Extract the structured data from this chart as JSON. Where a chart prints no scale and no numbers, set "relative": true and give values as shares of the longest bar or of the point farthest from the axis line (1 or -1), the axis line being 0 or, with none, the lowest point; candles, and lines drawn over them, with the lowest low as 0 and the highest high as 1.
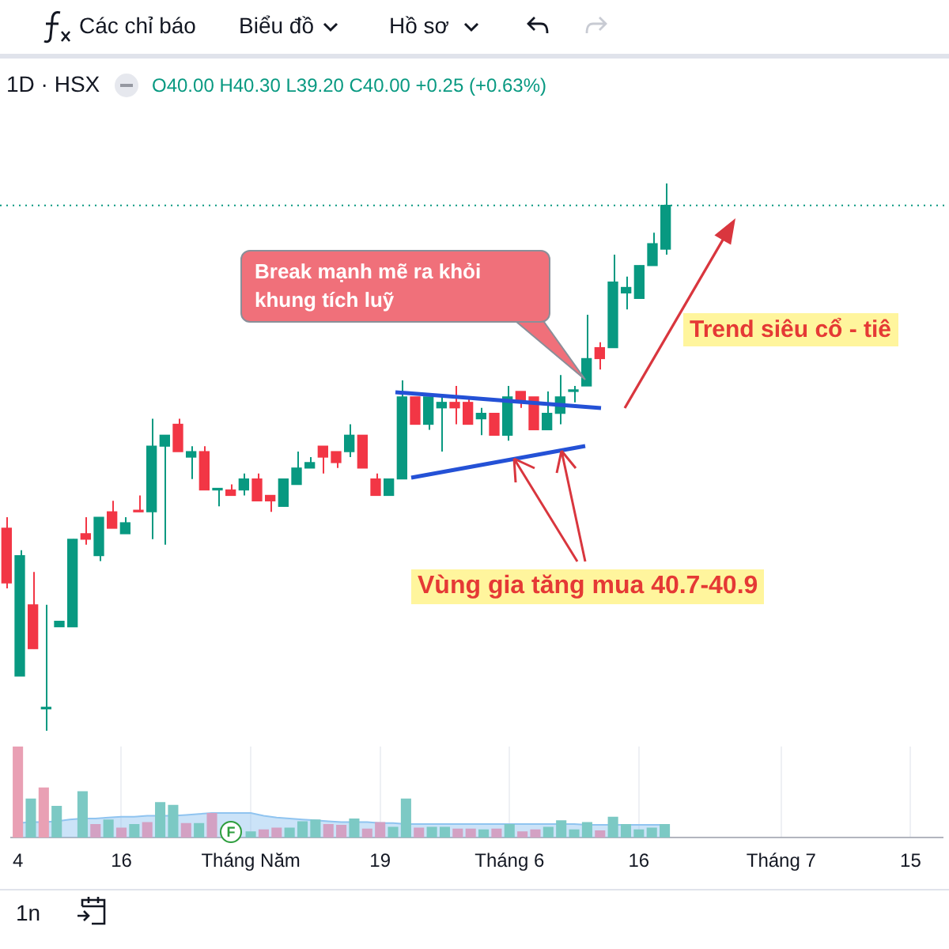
{
  "chart_data": [
    {
      "type": "candlestick",
      "title": "1D · HSX",
      "relative": true,
      "tick_labels": false,
      "categories": [
        null,
        null,
        null,
        null,
        null,
        null,
        null,
        null,
        null,
        null,
        null,
        null,
        null,
        null,
        null,
        null,
        null,
        null,
        null,
        null,
        null,
        null,
        null,
        null,
        null,
        null,
        null,
        null,
        null,
        null,
        null,
        null,
        null,
        null,
        null,
        null,
        null,
        null,
        null,
        null,
        null,
        null,
        null,
        null,
        null,
        null,
        null,
        null,
        null,
        null,
        null
      ],
      "ohlc": [
        [
          0.37,
          0.39,
          0.26,
          0.27
        ],
        [
          0.1,
          0.33,
          0.1,
          0.32
        ],
        [
          0.23,
          0.29,
          0.15,
          0.15
        ],
        [
          0.04,
          0.23,
          0,
          0.04
        ],
        [
          0.19,
          0.2,
          0.19,
          0.2
        ],
        [
          0.19,
          0.35,
          0.19,
          0.35
        ],
        [
          0.36,
          0.39,
          0.34,
          0.35
        ],
        [
          0.32,
          0.39,
          0.31,
          0.39
        ],
        [
          0.4,
          0.42,
          0.37,
          0.37
        ],
        [
          0.36,
          0.39,
          0.36,
          0.38
        ],
        [
          0.4,
          0.43,
          0.4,
          0.4
        ],
        [
          0.4,
          0.57,
          0.35,
          0.52
        ],
        [
          0.52,
          0.54,
          0.34,
          0.54
        ],
        [
          0.56,
          0.57,
          0.51,
          0.51
        ],
        [
          0.5,
          0.52,
          0.46,
          0.51
        ],
        [
          0.51,
          0.52,
          0.44,
          0.44
        ],
        [
          0.44,
          0.44,
          0.41,
          0.44
        ],
        [
          0.44,
          0.45,
          0.43,
          0.43
        ],
        [
          0.44,
          0.47,
          0.43,
          0.46
        ],
        [
          0.46,
          0.47,
          0.42,
          0.42
        ],
        [
          0.43,
          0.43,
          0.4,
          0.42
        ],
        [
          0.41,
          0.46,
          0.41,
          0.46
        ],
        [
          0.45,
          0.51,
          0.45,
          0.48
        ],
        [
          0.48,
          0.5,
          0.48,
          0.49
        ],
        [
          0.52,
          0.52,
          0.47,
          0.5
        ],
        [
          0.51,
          0.51,
          0.48,
          0.49
        ],
        [
          0.51,
          0.56,
          0.5,
          0.54
        ],
        [
          0.54,
          0.54,
          0.48,
          0.48
        ],
        [
          0.46,
          0.47,
          0.43,
          0.43
        ],
        [
          0.43,
          0.46,
          0.43,
          0.46
        ],
        [
          0.46,
          0.64,
          0.46,
          0.61
        ],
        [
          0.61,
          0.61,
          0.56,
          0.56
        ],
        [
          0.56,
          0.61,
          0.55,
          0.61
        ],
        [
          0.59,
          0.61,
          0.51,
          0.6
        ],
        [
          0.6,
          0.63,
          0.56,
          0.59
        ],
        [
          0.6,
          0.61,
          0.56,
          0.56
        ],
        [
          0.57,
          0.59,
          0.54,
          0.58
        ],
        [
          0.58,
          0.58,
          0.54,
          0.54
        ],
        [
          0.54,
          0.63,
          0.53,
          0.61
        ],
        [
          0.62,
          0.62,
          0.59,
          0.6
        ],
        [
          0.61,
          0.61,
          0.55,
          0.55
        ],
        [
          0.55,
          0.62,
          0.55,
          0.58
        ],
        [
          0.58,
          0.65,
          0.56,
          0.61
        ],
        [
          0.62,
          0.63,
          0.6,
          0.62
        ],
        [
          0.63,
          0.76,
          0.63,
          0.68
        ],
        [
          0.7,
          0.71,
          0.66,
          0.68
        ],
        [
          0.7,
          0.87,
          0.7,
          0.82
        ],
        [
          0.8,
          0.83,
          0.77,
          0.81
        ],
        [
          0.79,
          0.85,
          0.79,
          0.85
        ],
        [
          0.85,
          0.91,
          0.85,
          0.89
        ],
        [
          0.88,
          1,
          0.87,
          0.96
        ]
      ],
      "colors": [
        "#f23645",
        "#089981",
        "#f23645",
        "#089981",
        "#089981",
        "#089981",
        "#f23645",
        "#089981",
        "#f23645",
        "#089981",
        "#f23645",
        "#089981",
        "#089981",
        "#f23645",
        "#089981",
        "#f23645",
        "#089981",
        "#f23645",
        "#089981",
        "#f23645",
        "#f23645",
        "#089981",
        "#089981",
        "#089981",
        "#f23645",
        "#f23645",
        "#089981",
        "#f23645",
        "#f23645",
        "#089981",
        "#089981",
        "#f23645",
        "#089981",
        "#089981",
        "#f23645",
        "#f23645",
        "#089981",
        "#f23645",
        "#089981",
        "#f23645",
        "#f23645",
        "#089981",
        "#089981",
        "#089981",
        "#089981",
        "#f23645",
        "#089981",
        "#089981",
        "#089981",
        "#089981",
        "#089981"
      ],
      "ref_lines": [
        {
          "axis": "y",
          "value": 0.96,
          "color": "#089981",
          "line_style": "dotted"
        }
      ],
      "annotations": [
        "O40.00 H40.30 L39.20 C40.00 +0.25 (+0.63%)",
        "Break mạnh mẽ ra khỏi khung tích luỹ",
        "Trend siêu cổ - tiê",
        "Vùng gia tăng mua 40.7-40.9",
        "Các chỉ báo",
        "Biểu đồ",
        "Hồ sơ",
        "1n",
        "F"
      ]
    },
    {
      "type": "bar",
      "relative": true,
      "grid": "x",
      "tick_labels": "x",
      "categories": [
        "4",
        null,
        null,
        null,
        null,
        null,
        null,
        null,
        "16",
        null,
        null,
        null,
        null,
        null,
        null,
        null,
        null,
        null,
        "Tháng Năm",
        null,
        null,
        null,
        null,
        null,
        null,
        null,
        null,
        null,
        "19",
        null,
        null,
        null,
        null,
        null,
        null,
        null,
        null,
        null,
        "Tháng 6",
        null,
        null,
        null,
        null,
        null,
        null,
        null,
        null,
        null,
        "16",
        null,
        null,
        null,
        null,
        null,
        null,
        null,
        null,
        null,
        null,
        "Tháng 7",
        null,
        null,
        null,
        null,
        null,
        null,
        null,
        null,
        null,
        "15",
        null,
        null
      ],
      "series": [
        {
          "type": "area",
          "color": "#90c4f0",
          "values": [
            0.16,
            0.17,
            0.17,
            0.18,
            0.2,
            0.21,
            0.21,
            0.22,
            0.23,
            0.23,
            0.24,
            0.24,
            0.24,
            0.25,
            0.26,
            0.27,
            0.27,
            0.27,
            0.27,
            0.24,
            0.22,
            0.21,
            0.2,
            0.19,
            0.18,
            0.17,
            0.17,
            0.17,
            0.16,
            0.16,
            0.15,
            0.15,
            0.15,
            0.15,
            0.15,
            0.15,
            0.15,
            0.15,
            0.15,
            0.15,
            0.15,
            0.15,
            0.15,
            0.15,
            0.14,
            0.14,
            0.14,
            0.14,
            0.14,
            0.14,
            0.14,
            null,
            null,
            null,
            null,
            null,
            null,
            null,
            null,
            null,
            null,
            null,
            null,
            null,
            null,
            null,
            null,
            null,
            null,
            null,
            null,
            null
          ]
        },
        {
          "type": "bar",
          "values": [
            1,
            0.43,
            0.55,
            0.35,
            null,
            0.51,
            0.15,
            0.2,
            0.11,
            0.15,
            0.17,
            0.39,
            0.36,
            0.16,
            0.16,
            0.27,
            null,
            null,
            0.07,
            0.09,
            0.11,
            0.11,
            0.18,
            0.2,
            0.15,
            0.14,
            0.21,
            0.1,
            0.17,
            0.12,
            0.43,
            0.11,
            0.12,
            0.12,
            0.1,
            0.1,
            0.09,
            0.1,
            0.15,
            0.07,
            0.09,
            0.12,
            0.19,
            0.09,
            0.17,
            0.08,
            0.23,
            0.15,
            0.09,
            0.11,
            0.15,
            null,
            null,
            null,
            null,
            null,
            null,
            null,
            null,
            null,
            null,
            null,
            null,
            null,
            null,
            null,
            null,
            null,
            null,
            null,
            null,
            null
          ],
          "colors": [
            "#e9a0b4",
            "#7cc9c4",
            "#e9a0b4",
            "#7cc9c4",
            "#7cc9c4",
            "#7cc9c4",
            "#d3a1c3",
            "#7cc9c4",
            "#d3a1c3",
            "#7cc9c4",
            "#d3a1c3",
            "#7cc9c4",
            "#7cc9c4",
            "#d3a1c3",
            "#7cc9c4",
            "#d3a1c3",
            "#7cc9c4",
            "#d3a1c3",
            "#7cc9c4",
            "#d3a1c3",
            "#d3a1c3",
            "#7cc9c4",
            "#7cc9c4",
            "#7cc9c4",
            "#d3a1c3",
            "#d3a1c3",
            "#7cc9c4",
            "#d3a1c3",
            "#d3a1c3",
            "#7cc9c4",
            "#7cc9c4",
            "#d3a1c3",
            "#7cc9c4",
            "#7cc9c4",
            "#d3a1c3",
            "#d3a1c3",
            "#7cc9c4",
            "#d3a1c3",
            "#7cc9c4",
            "#d3a1c3",
            "#d3a1c3",
            "#7cc9c4",
            "#7cc9c4",
            "#7cc9c4",
            "#7cc9c4",
            "#d3a1c3",
            "#7cc9c4",
            "#7cc9c4",
            "#7cc9c4",
            "#7cc9c4",
            "#7cc9c4",
            null,
            null,
            null,
            null,
            null,
            null,
            null,
            null,
            null,
            null,
            null,
            null,
            null,
            null,
            null,
            null,
            null,
            null,
            null,
            null,
            null
          ]
        }
      ]
    }
  ]
}
